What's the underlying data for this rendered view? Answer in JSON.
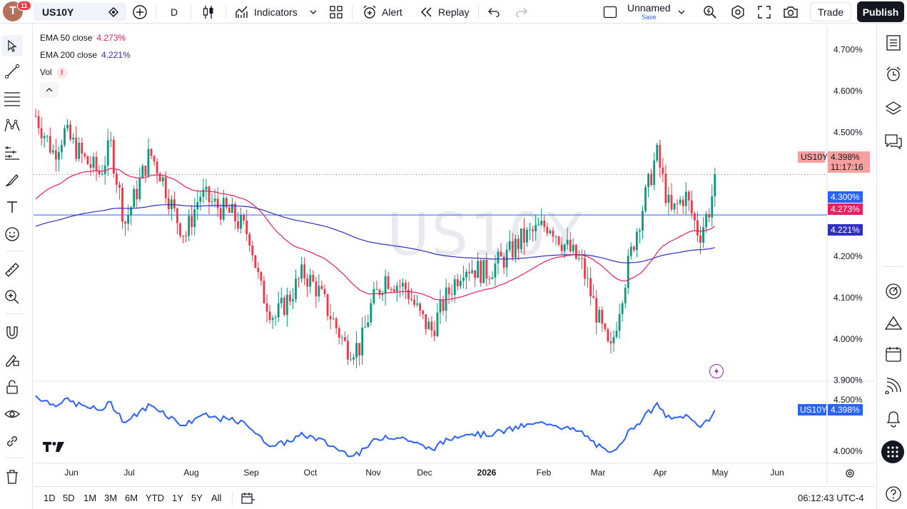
{
  "topbar": {
    "avatar_letter": "T",
    "notifications": "11",
    "symbol": "US10Y",
    "interval": "D",
    "indicators_label": "Indicators",
    "alert_label": "Alert",
    "replay_label": "Replay",
    "layout_name": "Unnamed",
    "layout_save": "Save",
    "trade_label": "Trade",
    "publish_label": "Publish"
  },
  "legend": {
    "ema50_label": "EMA 50 close",
    "ema50_value": "4.273%",
    "ema200_label": "EMA 200 close",
    "ema200_value": "4.221%",
    "vol_label": "Vol",
    "vol_warning": "!"
  },
  "watermark": "US10Y",
  "price_axis": [
    "4.700%",
    "4.600%",
    "4.500%",
    "4.100%",
    "4.000%",
    "3.900%",
    "4.200%"
  ],
  "labels": {
    "symbol_tag": "US10Y",
    "last_price": "4.398%",
    "countdown": "11:17:16",
    "hline": "4.300%",
    "ema50": "4.273%",
    "ema200": "4.221%"
  },
  "sub_axis": [
    "4.500%",
    "4.000%"
  ],
  "sub_labels": {
    "symbol": "US10Y",
    "value": "4.398%"
  },
  "time_axis": [
    "Jun",
    "Jul",
    "Aug",
    "Sep",
    "Oct",
    "Nov",
    "Dec",
    "2026",
    "Feb",
    "Mar",
    "Apr",
    "May",
    "Jun"
  ],
  "ranges": [
    "1D",
    "5D",
    "1M",
    "3M",
    "6M",
    "YTD",
    "1Y",
    "5Y",
    "All"
  ],
  "clock": "06:12:43 UTC-4",
  "colors": {
    "up": "#089981",
    "down": "#f23645",
    "ema50": "#e91e63",
    "ema200": "#3030c0",
    "hline": "#2962ff",
    "line": "#2962ff"
  },
  "chart_data": {
    "type": "candlestick",
    "ema50_last": 4.273,
    "ema200_last": 4.221,
    "hline": 4.3,
    "last": 4.398,
    "ylim": [
      3.86,
      4.72
    ]
  }
}
